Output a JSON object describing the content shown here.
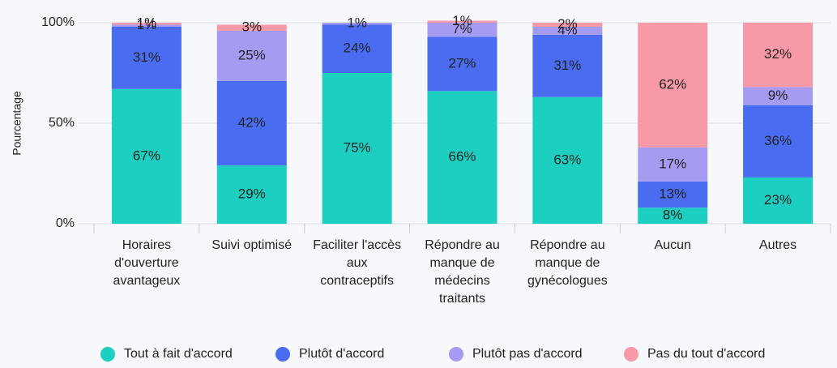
{
  "chart_data": {
    "type": "stacked_bar",
    "categories": [
      "Horaires d'ouverture avantageux",
      "Suivi optimisé",
      "Faciliter l'accès aux contraceptifs",
      "Répondre au manque de médecins traitants",
      "Répondre au manque de gynécologues",
      "Aucun",
      "Autres"
    ],
    "series": [
      {
        "name": "Tout à fait d'accord",
        "color": "#1ccfc0",
        "values": [
          67,
          29,
          75,
          66,
          63,
          8,
          23
        ],
        "value_labels": [
          "67%",
          "29%",
          "75%",
          "66%",
          "63%",
          "8%",
          "23%"
        ]
      },
      {
        "name": "Plutôt d'accord",
        "color": "#4a6cf0",
        "values": [
          31,
          42,
          24,
          27,
          31,
          13,
          36
        ],
        "value_labels": [
          "31%",
          "42%",
          "24%",
          "27%",
          "31%",
          "13%",
          "36%"
        ]
      },
      {
        "name": "Plutôt pas d'accord",
        "color": "#a59cf2",
        "values": [
          1,
          25,
          1,
          7,
          4,
          17,
          9
        ],
        "value_labels": [
          "1%",
          "25%",
          "1%",
          "7%",
          "4%",
          "17%",
          "9%"
        ]
      },
      {
        "name": "Pas du tout d'accord",
        "color": "#f799a6",
        "values": [
          1,
          3,
          0,
          1,
          2,
          62,
          32
        ],
        "value_labels": [
          "1%",
          "3%",
          null,
          "1%",
          "2%",
          "62%",
          "32%"
        ]
      }
    ],
    "ylabel": "Pourcentage",
    "ylim": [
      0,
      100
    ],
    "yticks": [
      {
        "value": 0,
        "label": "0%"
      },
      {
        "value": 50,
        "label": "50%"
      },
      {
        "value": 100,
        "label": "100%"
      }
    ],
    "grid": true,
    "legend": "bottom"
  }
}
